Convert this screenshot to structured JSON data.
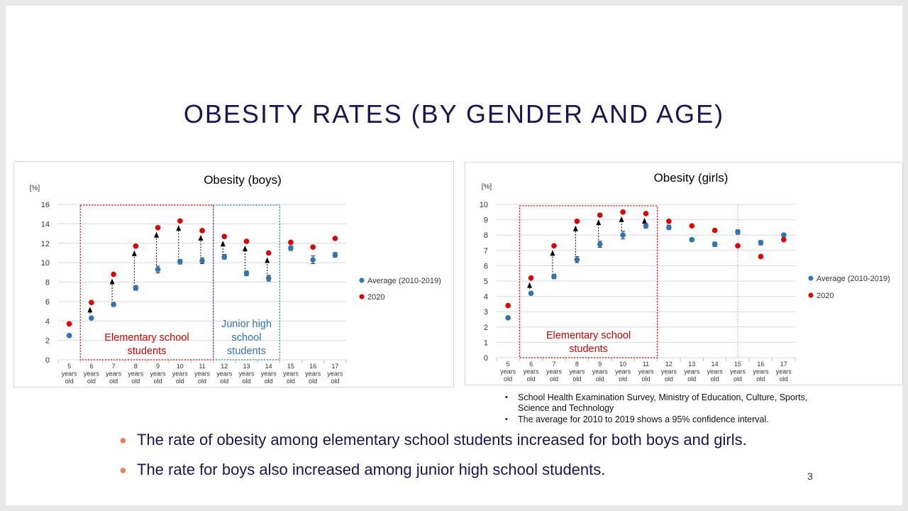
{
  "slide_title": "OBESITY RATES (BY GENDER AND AGE)",
  "page_number": "3",
  "notes": [
    "School Health Examination Survey, Ministry of Education, Culture, Sports, Science and Technology",
    "The average for 2010 to 2019 shows a 95% confidence interval."
  ],
  "bullets": [
    "The rate of obesity among elementary school students increased for both boys and girls.",
    "The rate for boys also increased among junior high school students."
  ],
  "colors": {
    "title": "#1b1650",
    "average": "#2e75b6",
    "y2020": "#e30000",
    "elementary_box": "#e30000",
    "junior_box": "#2e75b6",
    "bullet_dot": "#e3875f"
  },
  "chart_data": [
    {
      "type": "scatter",
      "title": "Obesity (boys)",
      "ylabel": "[%]",
      "ylim": [
        0,
        16
      ],
      "yticks": [
        0,
        2,
        4,
        6,
        8,
        10,
        12,
        14,
        16
      ],
      "categories": [
        [
          "5",
          "years",
          "old"
        ],
        [
          "6",
          "years",
          "old"
        ],
        [
          "7",
          "years",
          "old"
        ],
        [
          "8",
          "years",
          "old"
        ],
        [
          "9",
          "years",
          "old"
        ],
        [
          "10",
          "years",
          "old"
        ],
        [
          "11",
          "years",
          "old"
        ],
        [
          "12",
          "years",
          "old"
        ],
        [
          "13",
          "years",
          "old"
        ],
        [
          "14",
          "years",
          "old"
        ],
        [
          "15",
          "years",
          "old"
        ],
        [
          "16",
          "years",
          "old"
        ],
        [
          "17",
          "years",
          "old"
        ]
      ],
      "series": [
        {
          "name": "Average (2010-2019)",
          "values": [
            2.5,
            4.3,
            5.7,
            7.4,
            9.3,
            10.1,
            10.2,
            10.6,
            8.9,
            8.4,
            11.5,
            10.3,
            10.8
          ],
          "ci": [
            0.15,
            0.15,
            0.2,
            0.25,
            0.35,
            0.25,
            0.3,
            0.25,
            0.25,
            0.3,
            0.25,
            0.4,
            0.25
          ]
        },
        {
          "name": "2020",
          "values": [
            3.7,
            5.9,
            8.8,
            11.7,
            13.6,
            14.3,
            13.3,
            12.7,
            12.2,
            11.0,
            12.1,
            11.6,
            12.5
          ]
        }
      ],
      "arrows": [
        1,
        2,
        3,
        4,
        5,
        6,
        7,
        8,
        9
      ],
      "groups": [
        {
          "label": "Elementary school students",
          "lines": [
            "Elementary school",
            "students"
          ],
          "from": 1,
          "to": 6,
          "color": "elementary_box"
        },
        {
          "label": "Junior high school students",
          "lines": [
            "Junior high",
            "school",
            "students"
          ],
          "from": 7,
          "to": 9,
          "color": "junior_box"
        }
      ],
      "legend": "right"
    },
    {
      "type": "scatter",
      "title": "Obesity (girls)",
      "ylabel": "[%]",
      "ylim": [
        0,
        10
      ],
      "yticks": [
        0,
        1,
        2,
        3,
        4,
        5,
        6,
        7,
        8,
        9,
        10
      ],
      "categories": [
        [
          "5",
          "years",
          "old"
        ],
        [
          "6",
          "years",
          "old"
        ],
        [
          "7",
          "years",
          "old"
        ],
        [
          "8",
          "years",
          "old"
        ],
        [
          "9",
          "years",
          "old"
        ],
        [
          "10",
          "years",
          "old"
        ],
        [
          "11",
          "years",
          "old"
        ],
        [
          "12",
          "years",
          "old"
        ],
        [
          "13",
          "years",
          "old"
        ],
        [
          "14",
          "years",
          "old"
        ],
        [
          "15",
          "years",
          "old"
        ],
        [
          "16",
          "years",
          "old"
        ],
        [
          "17",
          "years",
          "old"
        ]
      ],
      "series": [
        {
          "name": "Average (2010-2019)",
          "values": [
            2.6,
            4.2,
            5.3,
            6.4,
            7.4,
            8.0,
            8.6,
            8.5,
            7.7,
            7.4,
            8.2,
            7.5,
            8.0
          ],
          "ci": [
            0.1,
            0.1,
            0.15,
            0.2,
            0.2,
            0.25,
            0.15,
            0.15,
            0.1,
            0.15,
            0.15,
            0.15,
            0.1
          ]
        },
        {
          "name": "2020",
          "values": [
            3.4,
            5.2,
            7.3,
            8.9,
            9.3,
            9.5,
            9.4,
            8.9,
            8.6,
            8.3,
            7.3,
            6.6,
            7.7
          ]
        }
      ],
      "arrows": [
        1,
        2,
        3,
        4,
        5,
        6
      ],
      "groups": [
        {
          "label": "Elementary school students",
          "lines": [
            "Elementary school",
            "students"
          ],
          "from": 1,
          "to": 6,
          "color": "elementary_box"
        }
      ],
      "legend": "right"
    }
  ]
}
